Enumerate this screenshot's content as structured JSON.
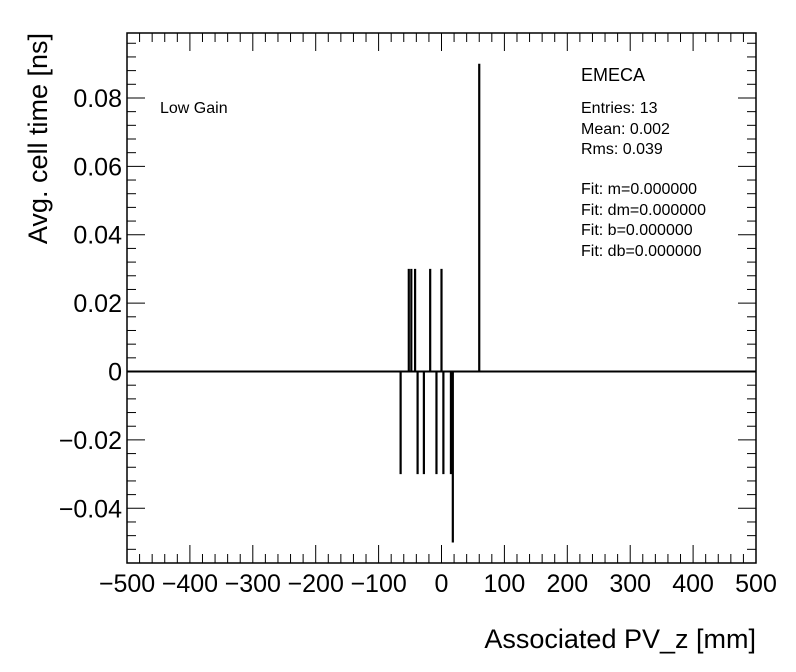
{
  "chart_data": {
    "type": "bar",
    "xlabel": "Associated PV_z [mm]",
    "ylabel": "Avg. cell time [ns]",
    "xlim": [
      -500,
      500
    ],
    "ylim": [
      -0.056,
      0.099
    ],
    "x_ticks": [
      -500,
      -400,
      -300,
      -200,
      -100,
      0,
      100,
      200,
      300,
      400,
      500
    ],
    "x_tick_labels": [
      "−500",
      "−400",
      "−300",
      "−200",
      "−100",
      "0",
      "100",
      "200",
      "300",
      "400",
      "500"
    ],
    "y_ticks": [
      -0.04,
      -0.02,
      0,
      0.02,
      0.04,
      0.06,
      0.08
    ],
    "y_tick_labels": [
      "−0.04",
      "−0.02",
      "0",
      "0.02",
      "0.04",
      "0.06",
      "0.08"
    ],
    "grid": false,
    "annotation": "Low Gain",
    "stats_box": {
      "title": "EMECA",
      "entries": "Entries: 13",
      "mean": "Mean: 0.002",
      "rms": "Rms: 0.039",
      "fit_m": "Fit: m=0.000000",
      "fit_dm": "Fit: dm=0.000000",
      "fit_b": "Fit: b=0.000000",
      "fit_db": "Fit: db=0.000000"
    },
    "points": [
      {
        "x": -65,
        "y": -0.03
      },
      {
        "x": -52,
        "y": 0.03
      },
      {
        "x": -48,
        "y": 0.03
      },
      {
        "x": -42,
        "y": 0.03
      },
      {
        "x": -38,
        "y": -0.03
      },
      {
        "x": -28,
        "y": -0.03
      },
      {
        "x": -18,
        "y": 0.03
      },
      {
        "x": -8,
        "y": -0.03
      },
      {
        "x": 0,
        "y": 0.03
      },
      {
        "x": 3,
        "y": -0.03
      },
      {
        "x": 15,
        "y": -0.03
      },
      {
        "x": 18,
        "y": -0.05
      },
      {
        "x": 60,
        "y": 0.09
      }
    ]
  }
}
